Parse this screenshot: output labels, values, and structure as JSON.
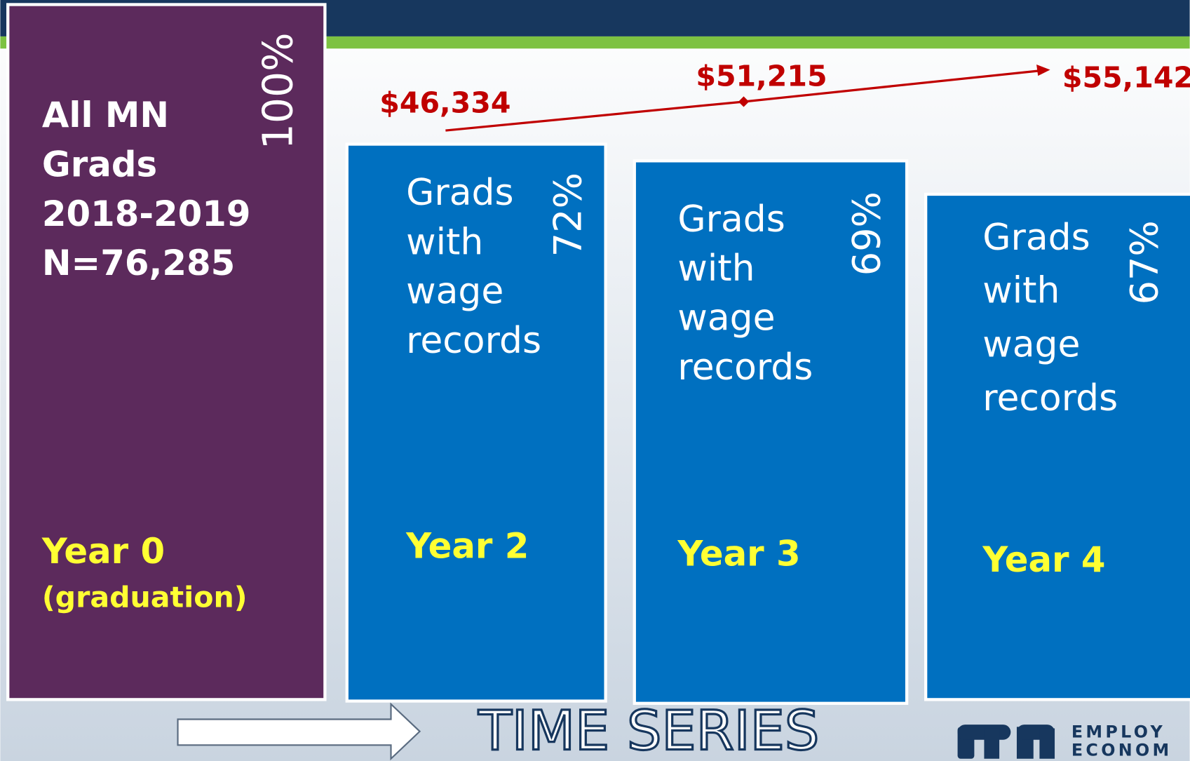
{
  "boxes": [
    {
      "lines": [
        "All MN",
        "Grads",
        "2018-2019",
        "N=76,285"
      ],
      "percent": "100%",
      "year": "Year 0",
      "note": "(graduation)"
    },
    {
      "lines": [
        "Grads",
        "with",
        "wage",
        "records"
      ],
      "percent": "72%",
      "year": "Year 2"
    },
    {
      "lines": [
        "Grads",
        "with",
        "wage",
        "records"
      ],
      "percent": "69%",
      "year": "Year 3"
    },
    {
      "lines": [
        "Grads",
        "with",
        "wage",
        "records"
      ],
      "percent": "67%",
      "year": "Year 4"
    }
  ],
  "wages": [
    "$46,334",
    "$51,215",
    "$55,142"
  ],
  "footer": {
    "title": "TIME SERIES",
    "logo": [
      "EMPLOY",
      "ECONOM"
    ]
  }
}
